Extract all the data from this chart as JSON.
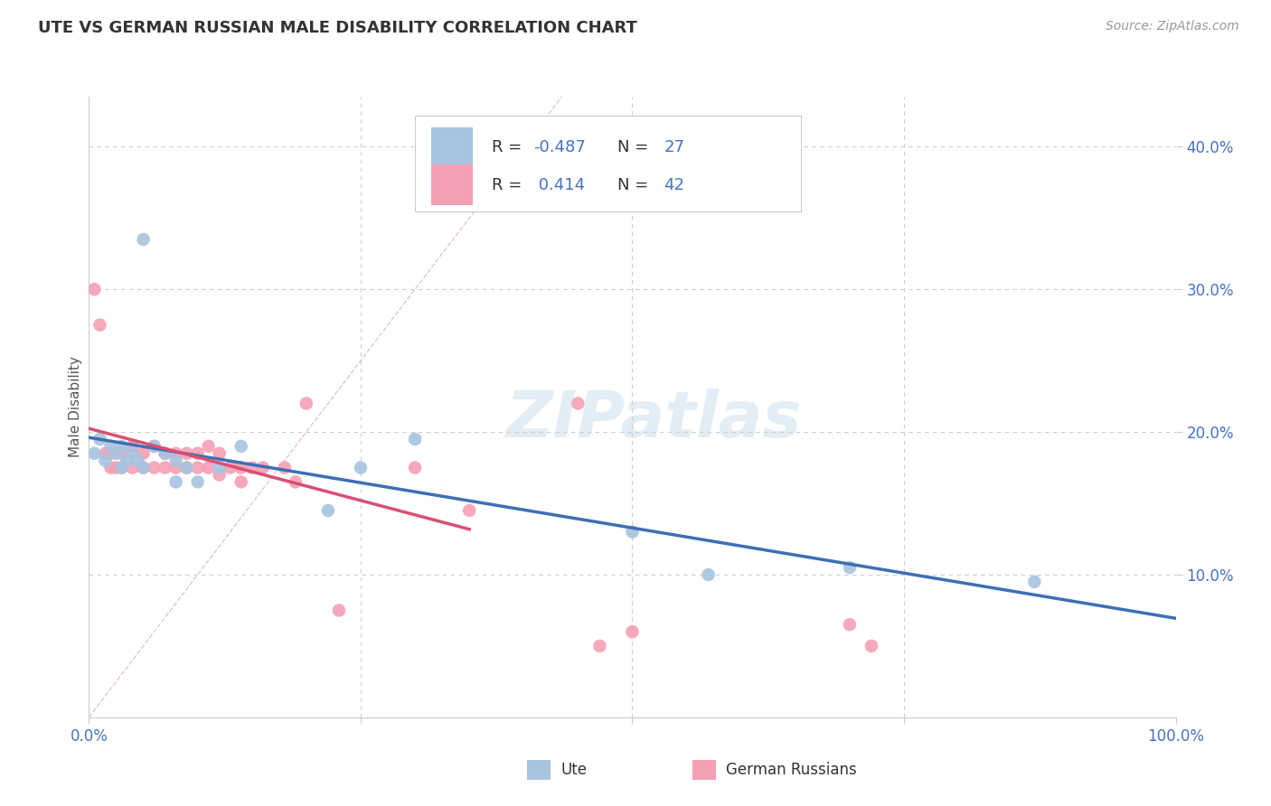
{
  "title": "UTE VS GERMAN RUSSIAN MALE DISABILITY CORRELATION CHART",
  "source": "Source: ZipAtlas.com",
  "ylabel": "Male Disability",
  "xlim": [
    0.0,
    1.0
  ],
  "ylim": [
    0.0,
    0.435
  ],
  "yticks": [
    0.1,
    0.2,
    0.3,
    0.4
  ],
  "ytick_labels": [
    "10.0%",
    "20.0%",
    "30.0%",
    "40.0%"
  ],
  "xtick_positions": [
    0.0,
    0.25,
    0.5,
    0.75,
    1.0
  ],
  "xtick_labels": [
    "0.0%",
    "",
    "",
    "",
    "100.0%"
  ],
  "r_ute": -0.487,
  "n_ute": 27,
  "r_german": 0.414,
  "n_german": 42,
  "ute_color": "#a8c4e0",
  "german_color": "#f4a0b4",
  "trend_ute_color": "#3d6fb5",
  "trend_german_color": "#d94f72",
  "diagonal_color": "#e8b8c0",
  "title_color": "#333333",
  "source_color": "#999999",
  "tick_color": "#4472c4",
  "grid_color": "#cccccc",
  "watermark_color": "#d5e4f0",
  "legend_text_color": "#333333",
  "legend_value_color": "#4472c4",
  "ute_x": [
    0.005,
    0.01,
    0.015,
    0.02,
    0.025,
    0.03,
    0.035,
    0.04,
    0.045,
    0.05,
    0.06,
    0.07,
    0.08,
    0.09,
    0.12,
    0.14,
    0.22,
    0.25,
    0.3,
    0.5,
    0.57,
    0.7,
    0.87,
    0.03,
    0.05,
    0.08,
    0.1
  ],
  "ute_y": [
    0.185,
    0.195,
    0.18,
    0.19,
    0.185,
    0.19,
    0.18,
    0.185,
    0.18,
    0.335,
    0.19,
    0.185,
    0.18,
    0.175,
    0.175,
    0.19,
    0.145,
    0.175,
    0.195,
    0.13,
    0.1,
    0.105,
    0.095,
    0.175,
    0.175,
    0.165,
    0.165
  ],
  "german_x": [
    0.005,
    0.01,
    0.015,
    0.02,
    0.02,
    0.025,
    0.03,
    0.03,
    0.04,
    0.04,
    0.05,
    0.05,
    0.06,
    0.06,
    0.07,
    0.07,
    0.08,
    0.08,
    0.09,
    0.09,
    0.1,
    0.1,
    0.11,
    0.11,
    0.12,
    0.12,
    0.13,
    0.14,
    0.14,
    0.15,
    0.16,
    0.18,
    0.19,
    0.2,
    0.23,
    0.3,
    0.35,
    0.45,
    0.47,
    0.5,
    0.7,
    0.72
  ],
  "german_y": [
    0.3,
    0.275,
    0.185,
    0.175,
    0.185,
    0.175,
    0.185,
    0.175,
    0.19,
    0.175,
    0.185,
    0.175,
    0.19,
    0.175,
    0.185,
    0.175,
    0.185,
    0.175,
    0.185,
    0.175,
    0.185,
    0.175,
    0.19,
    0.175,
    0.185,
    0.17,
    0.175,
    0.175,
    0.165,
    0.175,
    0.175,
    0.175,
    0.165,
    0.22,
    0.075,
    0.175,
    0.145,
    0.22,
    0.05,
    0.06,
    0.065,
    0.05
  ],
  "trend_ute_x_start": 0.0,
  "trend_ute_x_end": 1.0,
  "trend_german_x_start": 0.0,
  "trend_german_x_end": 0.35
}
